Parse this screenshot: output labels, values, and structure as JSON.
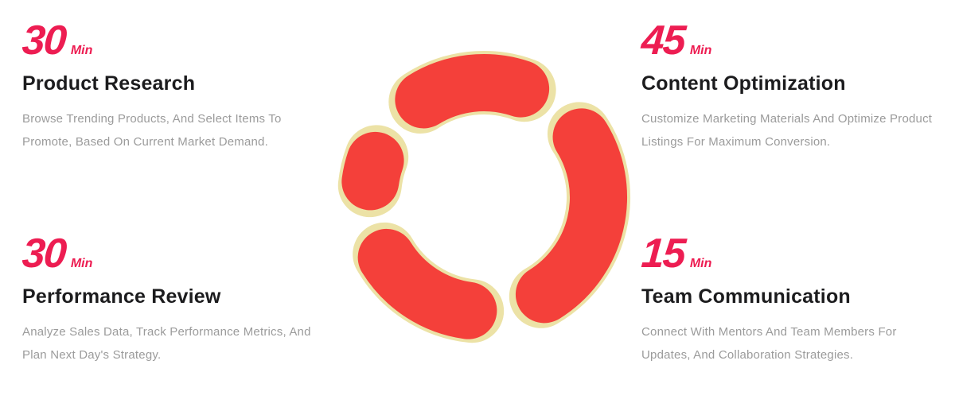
{
  "colors": {
    "accent_pink": "#ed1d52",
    "donut_red": "#f4403a",
    "donut_outline_cream": "#ece2a6",
    "heading_color": "#1c1c1e",
    "body_text_color": "#9b9b9b",
    "background": "#ffffff"
  },
  "blocks": [
    {
      "minutes": "30",
      "unit": "Min",
      "title": "Product Research",
      "description": "Browse Trending Products, And Select Items To Promote, Based On Current Market Demand."
    },
    {
      "minutes": "45",
      "unit": "Min",
      "title": "Content Optimization",
      "description": "Customize Marketing Materials And Optimize Product Listings For Maximum Conversion."
    },
    {
      "minutes": "30",
      "unit": "Min",
      "title": "Performance Review",
      "description": "Analyze Sales Data, Track Performance Metrics, And Plan Next Day's Strategy."
    },
    {
      "minutes": "15",
      "unit": "Min",
      "title": "Team Communication",
      "description": "Connect With Mentors And Team Members For Updates, And Collaboration Strategies."
    }
  ],
  "chart_data": {
    "type": "pie",
    "subtype": "donut-segmented",
    "categories": [
      "Product Research",
      "Content Optimization",
      "Performance Review",
      "Team Communication"
    ],
    "values": [
      30,
      45,
      30,
      15
    ],
    "unit": "Min",
    "total": 120,
    "title": "",
    "legend": "none",
    "data_labels": "none",
    "segment_color": "#f4403a",
    "segment_outline_color": "#ece2a6",
    "hole_color": "#ffffff"
  }
}
